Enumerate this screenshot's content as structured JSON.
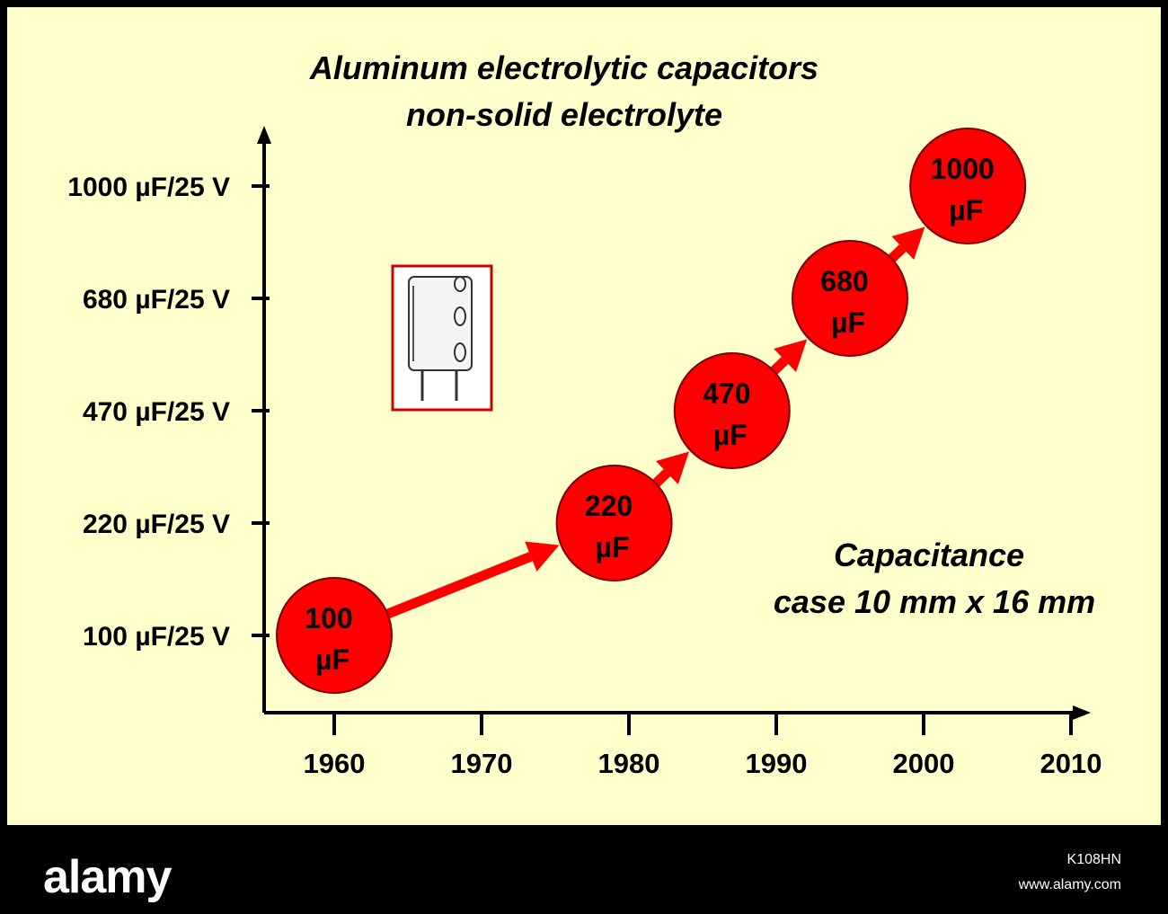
{
  "chart_data": {
    "type": "scatter",
    "title": "Aluminum electrolytic capacitors",
    "subtitle": "non-solid electrolyte",
    "annotation_line1": "Capacitance",
    "annotation_line2": "case 10 mm x 16 mm",
    "x_ticks": [
      "1960",
      "1970",
      "1980",
      "1990",
      "2000",
      "2010"
    ],
    "y_categories": [
      "100 µF/25 V",
      "220 µF/25 V",
      "470 µF/25 V",
      "680 µF/25 V",
      "1000 µF/25 V"
    ],
    "points": [
      {
        "year": 1960,
        "level": "100 µF/25 V",
        "label_top": "100",
        "label_bottom": "µF"
      },
      {
        "year": 1979,
        "level": "220 µF/25 V",
        "label_top": "220",
        "label_bottom": "µF"
      },
      {
        "year": 1987,
        "level": "470 µF/25 V",
        "label_top": "470",
        "label_bottom": "µF"
      },
      {
        "year": 1995,
        "level": "680 µF/25 V",
        "label_top": "680",
        "label_bottom": "µF"
      },
      {
        "year": 2003,
        "level": "1000 µF/25 V",
        "label_top": "1000",
        "label_bottom": "µF"
      }
    ],
    "grid": false,
    "legend": "none"
  },
  "colors": {
    "background": "#ffffcc",
    "frame": "#000000",
    "marker": "#ff0000",
    "arrow": "#ff0000",
    "icon_frame": "#cc0000"
  },
  "icons": {
    "component": "capacitor-icon"
  },
  "footer": {
    "brand": "alamy",
    "image_id": "K108HN",
    "site": "www.alamy.com"
  }
}
